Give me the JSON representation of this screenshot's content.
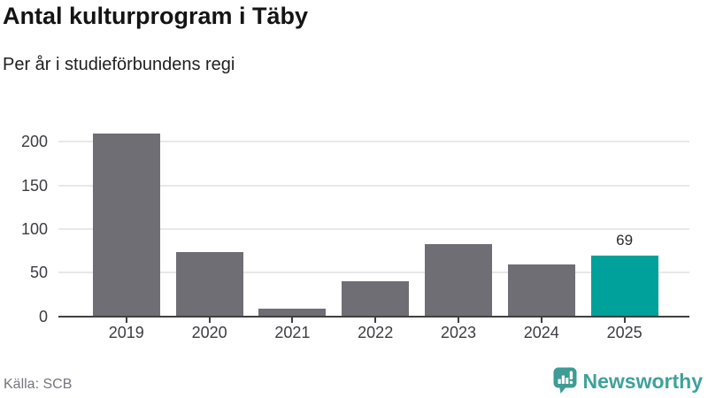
{
  "header": {
    "title": "Antal kulturprogram i Täby",
    "subtitle": "Per år i studieförbundens regi"
  },
  "footer": {
    "source": "Källa: SCB",
    "brand_name": "Newsworthy",
    "brand_icon": "newsworthy-speech-bubble-with-bar-chart-and-exclamation"
  },
  "colors": {
    "bar_default": "#6e6e74",
    "bar_highlight": "#00a19a",
    "axis_line": "#404040",
    "gridline": "#e8e8e8",
    "tick_label": "#3c3c42",
    "title_text": "#141414",
    "source_text": "#75757d",
    "brand_teal": "#3fa19b"
  },
  "chart_data": {
    "type": "bar",
    "title": "Antal kulturprogram i Täby",
    "subtitle": "Per år i studieförbundens regi",
    "categories": [
      "2019",
      "2020",
      "2021",
      "2022",
      "2023",
      "2024",
      "2025"
    ],
    "values": [
      209,
      74,
      9,
      40,
      83,
      59,
      69
    ],
    "highlight_category": "2025",
    "value_labels": {
      "2025": "69"
    },
    "xlabel": "",
    "ylabel": "",
    "yticks": [
      0,
      50,
      100,
      150,
      200
    ],
    "ylim": [
      0,
      215
    ],
    "grid": true,
    "legend": false,
    "source": "Källa: SCB"
  }
}
